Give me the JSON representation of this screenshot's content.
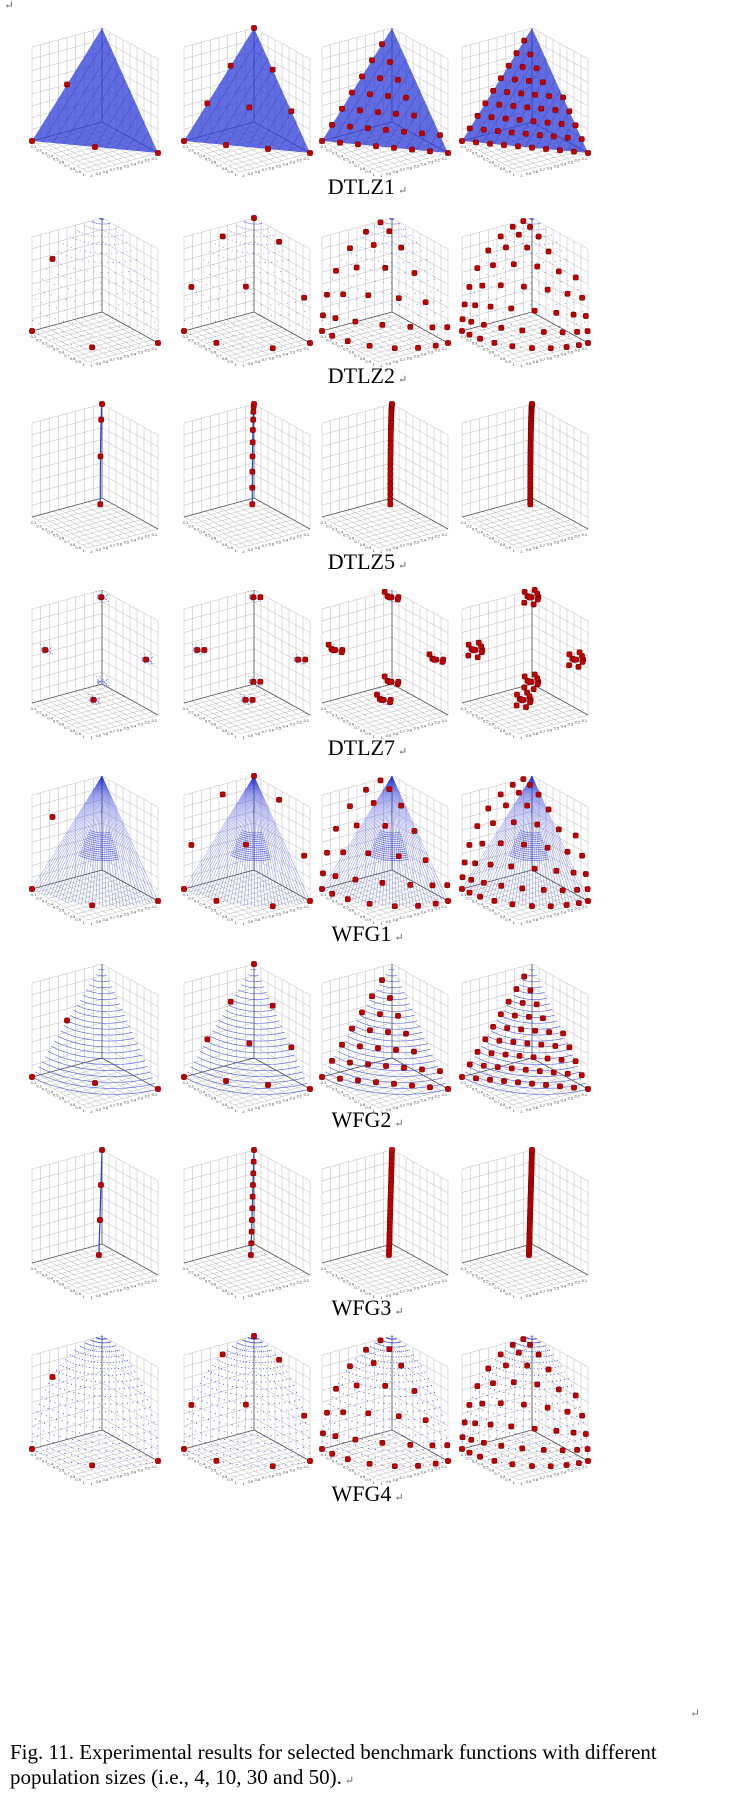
{
  "page_marks": {
    "top": "↵",
    "end": "↵",
    "paragraph": "↵"
  },
  "figure": {
    "panel_labels": [
      "DTLZ1",
      "DTLZ2",
      "DTLZ5",
      "DTLZ7",
      "WFG1",
      "WFG2",
      "WFG3",
      "WFG4"
    ],
    "population_sizes": [
      4,
      10,
      30,
      50
    ],
    "axis_tick_labels": [
      "0.1",
      "0.2",
      "0.3",
      "0.4",
      "0.5",
      "0.6",
      "0.7",
      "0.8",
      "0.9",
      "1"
    ],
    "caption": "Fig. 11. Experimental results for selected benchmark functions with different population sizes (i.e., 4, 10, 30 and 50).",
    "colors": {
      "front": "#2f3cd8",
      "point": "#c00000",
      "point_edge": "#6a0000",
      "grid": "#b9b9b9"
    },
    "surface_kinds": [
      "planar_dense",
      "spherical_sparse",
      "curve",
      "disconnected_patches",
      "cone_lines",
      "horizontal_arcs",
      "line",
      "spherical_dense"
    ]
  }
}
